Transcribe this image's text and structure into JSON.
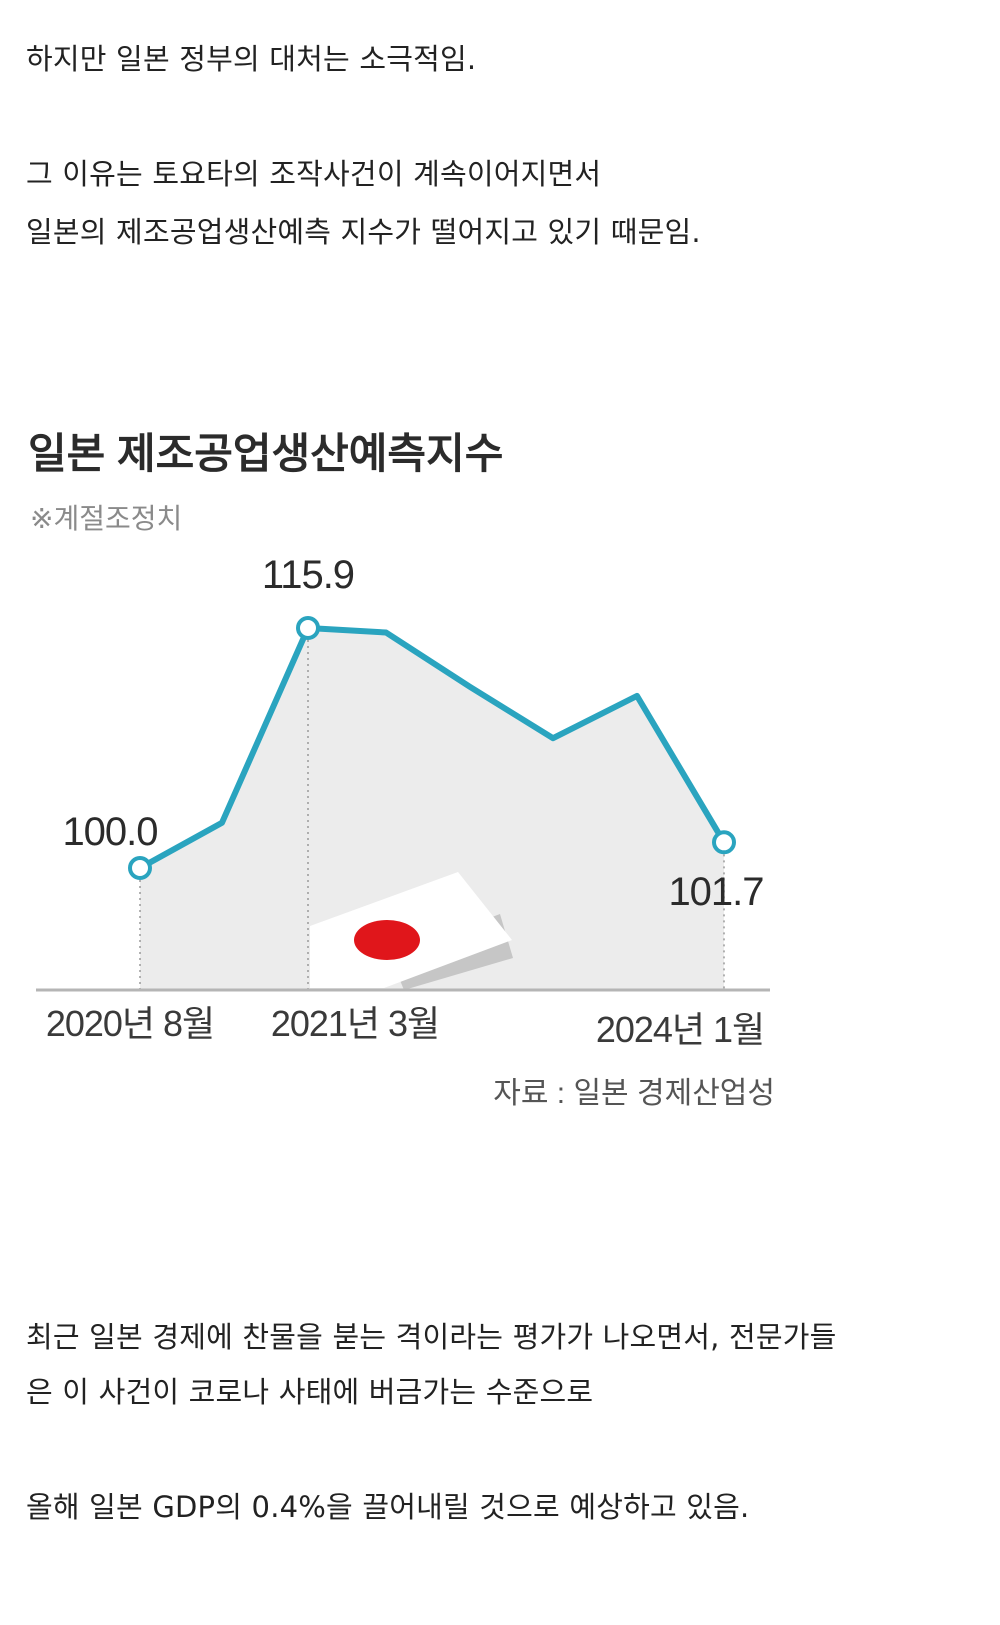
{
  "article": {
    "p1": "하지만 일본 정부의 대처는 소극적임.",
    "p2_line1": "그 이유는 토요타의 조작사건이 계속이어지면서",
    "p2_line2": "일본의 제조공업생산예측 지수가 떨어지고 있기 때문임.",
    "p3_line1": "최근 일본 경제에 찬물을 붇는 격이라는 평가가 나오면서, 전문가들",
    "p3_line2": "은 이 사건이 코로나 사태에 버금가는 수준으로",
    "p4": "올해 일본 GDP의 0.4%을 끌어내릴 것으로 예상하고 있음."
  },
  "chart_data": {
    "type": "line",
    "title": "일본 제조공업생산예측지수",
    "subtitle": "※계절조정치",
    "source": "자료 : 일본 경제산업성",
    "x_labels": [
      "2020년 8월",
      "2021년 3월",
      "2024년 1월"
    ],
    "series": [
      {
        "values": [
          100.0,
          103.0,
          115.9,
          115.6,
          112.0,
          108.6,
          111.4,
          101.7
        ]
      }
    ],
    "point_labels": [
      {
        "index": 0,
        "text": "100.0"
      },
      {
        "index": 2,
        "text": "115.9"
      },
      {
        "index": 7,
        "text": "101.7"
      }
    ],
    "ylim": [
      92,
      118
    ],
    "colors": {
      "line": "#2aa4bf",
      "fill": "#ececec",
      "flag_red": "#e0161b"
    }
  }
}
